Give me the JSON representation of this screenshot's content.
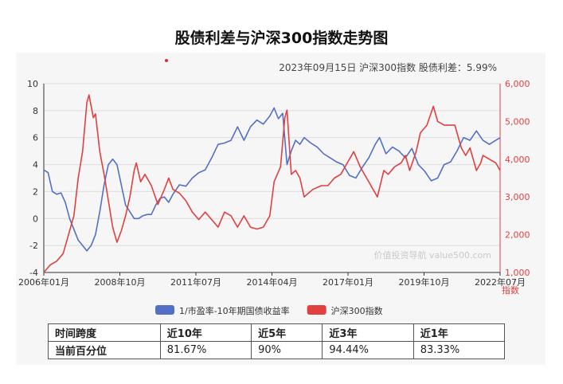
{
  "title": "股债利差与沪深300指数走势图",
  "info_line": "2023年09月15日    沪深300指数 股债利差：5.99%",
  "watermark": "价值投资导航 value500.com",
  "right_axis_title": "指数",
  "colors": {
    "spread": "#5470c6",
    "index": "#e04040",
    "grid": "#dcdcdc",
    "axis": "#333333",
    "accent_dot": "#d03030"
  },
  "chart_data": {
    "type": "line",
    "x_ticks": [
      "2006年01月",
      "2008年10月",
      "2011年07月",
      "2014年04月",
      "2017年01月",
      "2019年10月",
      "2022年07月"
    ],
    "y_left": {
      "range": [
        -4,
        10
      ],
      "ticks": [
        -4,
        -2,
        0,
        2,
        4,
        6,
        8,
        10
      ]
    },
    "y_right": {
      "range": [
        1000,
        6000
      ],
      "ticks": [
        1000,
        2000,
        3000,
        4000,
        5000,
        6000
      ],
      "tick_labels": [
        "1,000",
        "2,000",
        "3,000",
        "4,000",
        "5,000",
        "6,000"
      ]
    },
    "grid": true,
    "legend_position": "bottom",
    "series": [
      {
        "name": "1/市盈率-10年期国债收益率",
        "axis": "left",
        "color": "#5470c6",
        "points": [
          [
            "2006-01",
            3.6
          ],
          [
            "2006-03",
            3.4
          ],
          [
            "2006-05",
            2.0
          ],
          [
            "2006-07",
            1.8
          ],
          [
            "2006-09",
            1.9
          ],
          [
            "2006-11",
            1.2
          ],
          [
            "2007-01",
            0.0
          ],
          [
            "2007-03",
            -0.8
          ],
          [
            "2007-05",
            -1.6
          ],
          [
            "2007-07",
            -2.0
          ],
          [
            "2007-09",
            -2.4
          ],
          [
            "2007-11",
            -2.0
          ],
          [
            "2008-01",
            -1.2
          ],
          [
            "2008-03",
            0.5
          ],
          [
            "2008-05",
            2.5
          ],
          [
            "2008-07",
            4.0
          ],
          [
            "2008-09",
            4.4
          ],
          [
            "2008-11",
            4.0
          ],
          [
            "2009-01",
            2.5
          ],
          [
            "2009-03",
            1.0
          ],
          [
            "2009-05",
            0.5
          ],
          [
            "2009-07",
            0.0
          ],
          [
            "2009-09",
            0.0
          ],
          [
            "2009-11",
            0.2
          ],
          [
            "2010-01",
            0.3
          ],
          [
            "2010-03",
            0.3
          ],
          [
            "2010-05",
            1.0
          ],
          [
            "2010-07",
            1.5
          ],
          [
            "2010-09",
            1.6
          ],
          [
            "2010-11",
            1.2
          ],
          [
            "2011-01",
            1.8
          ],
          [
            "2011-04",
            2.5
          ],
          [
            "2011-07",
            2.4
          ],
          [
            "2011-10",
            3.0
          ],
          [
            "2012-01",
            3.4
          ],
          [
            "2012-04",
            3.6
          ],
          [
            "2012-07",
            4.5
          ],
          [
            "2012-10",
            5.5
          ],
          [
            "2013-01",
            5.6
          ],
          [
            "2013-04",
            5.8
          ],
          [
            "2013-07",
            6.8
          ],
          [
            "2013-10",
            5.8
          ],
          [
            "2014-01",
            6.8
          ],
          [
            "2014-04",
            7.3
          ],
          [
            "2014-07",
            7.0
          ],
          [
            "2014-10",
            7.6
          ],
          [
            "2014-12",
            8.2
          ],
          [
            "2015-02",
            7.4
          ],
          [
            "2015-04",
            7.8
          ],
          [
            "2015-06",
            4.0
          ],
          [
            "2015-08",
            5.0
          ],
          [
            "2015-10",
            5.8
          ],
          [
            "2015-12",
            5.5
          ],
          [
            "2016-02",
            6.0
          ],
          [
            "2016-05",
            5.6
          ],
          [
            "2016-08",
            5.3
          ],
          [
            "2016-11",
            4.8
          ],
          [
            "2017-02",
            4.5
          ],
          [
            "2017-05",
            4.2
          ],
          [
            "2017-08",
            4.0
          ],
          [
            "2017-11",
            3.2
          ],
          [
            "2018-02",
            3.0
          ],
          [
            "2018-05",
            3.8
          ],
          [
            "2018-08",
            4.5
          ],
          [
            "2018-11",
            5.5
          ],
          [
            "2019-01",
            6.0
          ],
          [
            "2019-04",
            4.8
          ],
          [
            "2019-07",
            5.3
          ],
          [
            "2019-10",
            5.0
          ],
          [
            "2020-01",
            4.5
          ],
          [
            "2020-04",
            5.2
          ],
          [
            "2020-07",
            4.0
          ],
          [
            "2020-10",
            3.5
          ],
          [
            "2021-01",
            2.8
          ],
          [
            "2021-04",
            3.0
          ],
          [
            "2021-07",
            4.0
          ],
          [
            "2021-10",
            4.2
          ],
          [
            "2022-01",
            5.0
          ],
          [
            "2022-04",
            6.0
          ],
          [
            "2022-07",
            5.8
          ],
          [
            "2022-10",
            6.5
          ],
          [
            "2023-01",
            5.8
          ],
          [
            "2023-04",
            5.5
          ],
          [
            "2023-07",
            5.8
          ],
          [
            "2023-09",
            5.99
          ]
        ]
      },
      {
        "name": "沪深300指数",
        "axis": "right",
        "color": "#e04040",
        "points": [
          [
            "2006-01",
            1000
          ],
          [
            "2006-04",
            1200
          ],
          [
            "2006-07",
            1300
          ],
          [
            "2006-10",
            1500
          ],
          [
            "2007-01",
            2100
          ],
          [
            "2007-03",
            2500
          ],
          [
            "2007-05",
            3500
          ],
          [
            "2007-07",
            4200
          ],
          [
            "2007-09",
            5500
          ],
          [
            "2007-10",
            5700
          ],
          [
            "2007-12",
            5100
          ],
          [
            "2008-01",
            5200
          ],
          [
            "2008-03",
            4200
          ],
          [
            "2008-05",
            3600
          ],
          [
            "2008-07",
            2900
          ],
          [
            "2008-09",
            2200
          ],
          [
            "2008-11",
            1800
          ],
          [
            "2009-01",
            2100
          ],
          [
            "2009-03",
            2500
          ],
          [
            "2009-05",
            3000
          ],
          [
            "2009-07",
            3700
          ],
          [
            "2009-08",
            3900
          ],
          [
            "2009-10",
            3400
          ],
          [
            "2009-12",
            3600
          ],
          [
            "2010-03",
            3300
          ],
          [
            "2010-06",
            2800
          ],
          [
            "2010-09",
            3200
          ],
          [
            "2010-11",
            3500
          ],
          [
            "2011-01",
            3200
          ],
          [
            "2011-04",
            3100
          ],
          [
            "2011-07",
            2900
          ],
          [
            "2011-10",
            2600
          ],
          [
            "2012-01",
            2400
          ],
          [
            "2012-04",
            2600
          ],
          [
            "2012-07",
            2400
          ],
          [
            "2012-10",
            2200
          ],
          [
            "2013-01",
            2600
          ],
          [
            "2013-04",
            2500
          ],
          [
            "2013-07",
            2200
          ],
          [
            "2013-10",
            2500
          ],
          [
            "2014-01",
            2200
          ],
          [
            "2014-04",
            2150
          ],
          [
            "2014-07",
            2200
          ],
          [
            "2014-10",
            2500
          ],
          [
            "2014-12",
            3400
          ],
          [
            "2015-03",
            3800
          ],
          [
            "2015-05",
            5100
          ],
          [
            "2015-06",
            5300
          ],
          [
            "2015-08",
            3600
          ],
          [
            "2015-10",
            3700
          ],
          [
            "2015-12",
            3500
          ],
          [
            "2016-02",
            3000
          ],
          [
            "2016-06",
            3200
          ],
          [
            "2016-10",
            3300
          ],
          [
            "2017-01",
            3300
          ],
          [
            "2017-04",
            3500
          ],
          [
            "2017-07",
            3600
          ],
          [
            "2017-10",
            3900
          ],
          [
            "2018-01",
            4200
          ],
          [
            "2018-04",
            3800
          ],
          [
            "2018-07",
            3500
          ],
          [
            "2018-10",
            3200
          ],
          [
            "2018-12",
            3000
          ],
          [
            "2019-03",
            3700
          ],
          [
            "2019-05",
            3600
          ],
          [
            "2019-08",
            3800
          ],
          [
            "2019-11",
            3900
          ],
          [
            "2020-01",
            4100
          ],
          [
            "2020-03",
            3700
          ],
          [
            "2020-06",
            4200
          ],
          [
            "2020-08",
            4700
          ],
          [
            "2020-11",
            4900
          ],
          [
            "2021-02",
            5400
          ],
          [
            "2021-04",
            5000
          ],
          [
            "2021-07",
            4900
          ],
          [
            "2021-10",
            4900
          ],
          [
            "2021-12",
            4900
          ],
          [
            "2022-03",
            4300
          ],
          [
            "2022-05",
            4100
          ],
          [
            "2022-07",
            4300
          ],
          [
            "2022-10",
            3700
          ],
          [
            "2022-12",
            3900
          ],
          [
            "2023-01",
            4100
          ],
          [
            "2023-04",
            4000
          ],
          [
            "2023-07",
            3900
          ],
          [
            "2023-09",
            3700
          ]
        ]
      }
    ]
  },
  "stats_table": {
    "header": [
      "时间跨度",
      "近10年",
      "近5年",
      "近3年",
      "近1年"
    ],
    "row": [
      "当前百分位",
      "81.67%",
      "90%",
      "94.44%",
      "83.33%"
    ]
  }
}
